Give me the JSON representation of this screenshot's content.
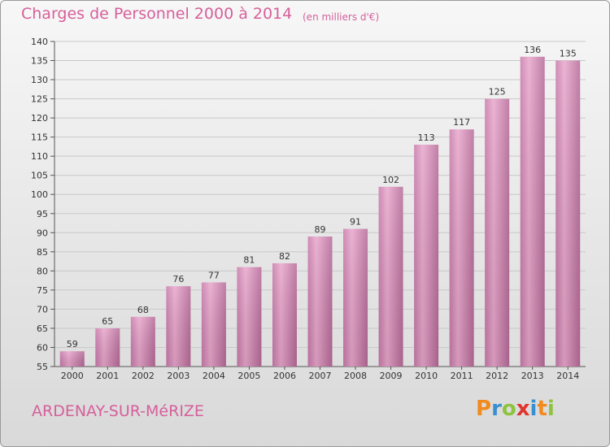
{
  "header": {
    "title": "Charges de Personnel 2000 à 2014",
    "subtitle": "(en milliers d'€)"
  },
  "footer": {
    "commune": "ARDENAY-SUR-MéRIZE",
    "logo": "Proxiti"
  },
  "colors": {
    "accent": "#d65f9b",
    "bar_light": "#e8a6cb",
    "bar_dark": "#b66a98",
    "logo_letters": [
      "#f28b1e",
      "#3a8fd0",
      "#8cc43f",
      "#e0342f",
      "#3a8fd0",
      "#f28b1e",
      "#8cc43f"
    ]
  },
  "chart_data": {
    "type": "bar",
    "title": "Charges de Personnel 2000 à 2014",
    "subtitle": "(en milliers d'€)",
    "xlabel": "",
    "ylabel": "",
    "categories": [
      "2000",
      "2001",
      "2002",
      "2003",
      "2004",
      "2005",
      "2006",
      "2007",
      "2008",
      "2009",
      "2010",
      "2011",
      "2012",
      "2013",
      "2014"
    ],
    "values": [
      59,
      65,
      68,
      76,
      77,
      81,
      82,
      89,
      91,
      102,
      113,
      117,
      125,
      136,
      135
    ],
    "ylim": [
      55,
      140
    ],
    "yticks": [
      55,
      60,
      65,
      70,
      75,
      80,
      85,
      90,
      95,
      100,
      105,
      110,
      115,
      120,
      125,
      130,
      135,
      140
    ],
    "grid": true,
    "data_labels": true
  }
}
